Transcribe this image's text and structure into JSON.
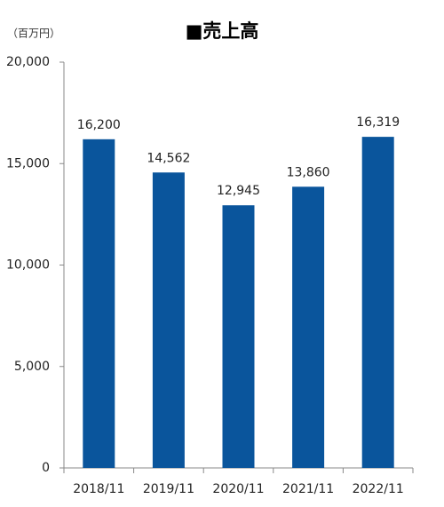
{
  "chart_data": {
    "type": "bar",
    "title": "■売上高",
    "y_label": "（百万円）",
    "categories": [
      "2018/11",
      "2019/11",
      "2020/11",
      "2021/11",
      "2022/11"
    ],
    "values": [
      16200,
      14562,
      12945,
      13860,
      16319
    ],
    "value_labels": [
      "16,200",
      "14,562",
      "12,945",
      "13,860",
      "16,319"
    ],
    "color": "#0a559c",
    "ylim": [
      0,
      20000
    ],
    "yticks": [
      0,
      {
        "value": 5000,
        "label": "5,000"
      },
      {
        "value": 10000,
        "label": "10,000"
      },
      {
        "value": 15000,
        "label": "15,000"
      },
      {
        "value": 20000,
        "label": "20,000"
      }
    ],
    "grid": false
  }
}
